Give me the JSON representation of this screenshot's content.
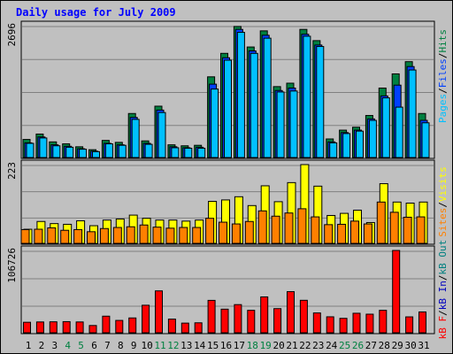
{
  "title": "Daily usage for July 2009",
  "colors": {
    "background": "#c0c0c0",
    "panel": "#c0c0c0",
    "grid": "#808080",
    "hits": "#008040",
    "files": "#0040ff",
    "pages": "#00c0ff",
    "visits": "#ffff00",
    "sites": "#ff8000",
    "kbin": "#0000c0",
    "kbout": "#008080",
    "kbf": "#ff0000",
    "weekend": "#008040",
    "weekday": "#000000"
  },
  "panels": {
    "top": {
      "max_label": "2696",
      "legend": [
        "Hits",
        "Files",
        "Pages"
      ]
    },
    "middle": {
      "max_label": "223",
      "legend": [
        "Visits",
        "Sites"
      ]
    },
    "bottom": {
      "max_label": "106726",
      "legend": [
        "kB Out",
        "kB In",
        "kB F"
      ]
    }
  },
  "chart_data": [
    {
      "type": "bar",
      "categories": [
        "1",
        "2",
        "3",
        "4",
        "5",
        "6",
        "7",
        "8",
        "9",
        "10",
        "11",
        "12",
        "13",
        "14",
        "15",
        "16",
        "17",
        "18",
        "19",
        "20",
        "21",
        "22",
        "23",
        "24",
        "25",
        "26",
        "27",
        "28",
        "29",
        "30",
        "31"
      ],
      "ylim": [
        0,
        2696
      ],
      "legend": "right",
      "series": [
        {
          "name": "Hits",
          "values": [
            370,
            480,
            320,
            280,
            220,
            160,
            350,
            310,
            900,
            340,
            1050,
            260,
            240,
            250,
            1650,
            2130,
            2680,
            2260,
            2590,
            1450,
            1520,
            2620,
            2390,
            380,
            560,
            620,
            860,
            1420,
            1710,
            1960,
            900
          ]
        },
        {
          "name": "Files",
          "values": [
            300,
            420,
            260,
            230,
            180,
            130,
            290,
            260,
            820,
            290,
            970,
            220,
            200,
            210,
            1500,
            2040,
            2620,
            2180,
            2500,
            1370,
            1420,
            2520,
            2300,
            320,
            510,
            560,
            790,
            1260,
            1480,
            1860,
            760
          ]
        },
        {
          "name": "Pages",
          "values": [
            290,
            400,
            240,
            210,
            170,
            120,
            280,
            250,
            780,
            270,
            920,
            200,
            190,
            190,
            1400,
            1990,
            2560,
            2130,
            2440,
            1340,
            1360,
            2480,
            2270,
            300,
            490,
            540,
            760,
            1220,
            1030,
            1790,
            710
          ]
        }
      ]
    },
    {
      "type": "bar",
      "categories": [
        "1",
        "2",
        "3",
        "4",
        "5",
        "6",
        "7",
        "8",
        "9",
        "10",
        "11",
        "12",
        "13",
        "14",
        "15",
        "16",
        "17",
        "18",
        "19",
        "20",
        "21",
        "22",
        "23",
        "24",
        "25",
        "26",
        "27",
        "28",
        "29",
        "30",
        "31"
      ],
      "ylim": [
        0,
        223
      ],
      "legend": "right",
      "series": [
        {
          "name": "Visits",
          "values": [
            40,
            62,
            56,
            54,
            64,
            50,
            66,
            69,
            80,
            71,
            66,
            66,
            63,
            66,
            119,
            123,
            132,
            107,
            163,
            118,
            172,
            223,
            162,
            79,
            85,
            94,
            59,
            169,
            117,
            114,
            117
          ]
        },
        {
          "name": "Sites",
          "values": [
            39,
            40,
            44,
            37,
            39,
            33,
            42,
            45,
            47,
            52,
            46,
            43,
            45,
            45,
            71,
            60,
            55,
            62,
            92,
            77,
            86,
            98,
            75,
            53,
            54,
            63,
            55,
            117,
            88,
            74,
            75
          ]
        }
      ]
    },
    {
      "type": "bar",
      "categories": [
        "1",
        "2",
        "3",
        "4",
        "5",
        "6",
        "7",
        "8",
        "9",
        "10",
        "11",
        "12",
        "13",
        "14",
        "15",
        "16",
        "17",
        "18",
        "19",
        "20",
        "21",
        "22",
        "23",
        "24",
        "25",
        "26",
        "27",
        "28",
        "29",
        "30",
        "31"
      ],
      "ylim": [
        0,
        106726
      ],
      "legend": "right",
      "series": [
        {
          "name": "kB Out",
          "values": [
            0,
            0,
            0,
            0,
            0,
            0,
            0,
            0,
            0,
            0,
            0,
            0,
            0,
            0,
            0,
            0,
            0,
            0,
            0,
            0,
            0,
            0,
            0,
            0,
            0,
            0,
            0,
            0,
            0,
            0,
            0
          ]
        },
        {
          "name": "kB In",
          "values": [
            0,
            0,
            0,
            0,
            0,
            0,
            0,
            0,
            0,
            0,
            0,
            0,
            0,
            0,
            0,
            0,
            0,
            0,
            0,
            0,
            0,
            0,
            0,
            0,
            0,
            0,
            0,
            0,
            0,
            0,
            0
          ]
        },
        {
          "name": "kB F",
          "values": [
            13600,
            14000,
            14200,
            14400,
            14000,
            9400,
            21500,
            16000,
            19200,
            35700,
            54300,
            17700,
            12500,
            12900,
            42000,
            30600,
            36500,
            29100,
            46500,
            31300,
            53300,
            42100,
            25700,
            20700,
            18700,
            25300,
            24100,
            29100,
            106726,
            20600,
            27000
          ]
        }
      ]
    }
  ]
}
